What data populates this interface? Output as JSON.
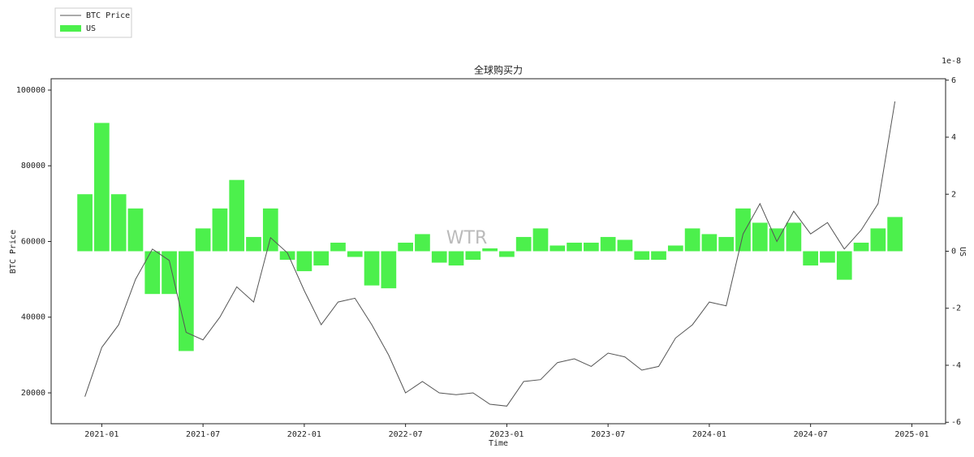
{
  "chart_data": {
    "type": "line_bar_dual",
    "title": "全球购买力",
    "xlabel": "Time",
    "ylabel": "BTC Price",
    "y2label": "US",
    "y2_offset_label": "1e-8",
    "watermark": "WTR",
    "x": [
      "2020-12",
      "2021-01",
      "2021-02",
      "2021-03",
      "2021-04",
      "2021-05",
      "2021-06",
      "2021-07",
      "2021-08",
      "2021-09",
      "2021-10",
      "2021-11",
      "2021-12",
      "2022-01",
      "2022-02",
      "2022-03",
      "2022-04",
      "2022-05",
      "2022-06",
      "2022-07",
      "2022-08",
      "2022-09",
      "2022-10",
      "2022-11",
      "2022-12",
      "2023-01",
      "2023-02",
      "2023-03",
      "2023-04",
      "2023-05",
      "2023-06",
      "2023-07",
      "2023-08",
      "2023-09",
      "2023-10",
      "2023-11",
      "2023-12",
      "2024-01",
      "2024-02",
      "2024-03",
      "2024-04",
      "2024-05",
      "2024-06",
      "2024-07",
      "2024-08",
      "2024-09",
      "2024-10",
      "2024-11",
      "2024-12"
    ],
    "series": [
      {
        "name": "BTC Price",
        "kind": "line",
        "color": "#555555",
        "axis": "y",
        "values": [
          19000,
          32000,
          38000,
          50000,
          58000,
          55000,
          36000,
          34000,
          40000,
          48000,
          44000,
          61000,
          57000,
          47000,
          38000,
          44000,
          45000,
          38000,
          30000,
          20000,
          23000,
          20000,
          19500,
          20000,
          17000,
          16500,
          23000,
          23500,
          28000,
          29000,
          27000,
          30500,
          29500,
          26000,
          27000,
          34500,
          38000,
          44000,
          43000,
          62000,
          70000,
          60000,
          68000,
          62000,
          65000,
          58000,
          63000,
          70000,
          97000
        ]
      },
      {
        "name": "US",
        "kind": "bar",
        "color": "#4cf04c",
        "axis": "y2",
        "values": [
          2.0,
          4.5,
          2.0,
          1.5,
          -1.5,
          -1.5,
          -3.5,
          0.8,
          1.5,
          2.5,
          0.5,
          1.5,
          -0.3,
          -0.7,
          -0.5,
          0.3,
          -0.2,
          -1.2,
          -1.3,
          0.3,
          0.6,
          -0.4,
          -0.5,
          -0.3,
          0.1,
          -0.2,
          0.5,
          0.8,
          0.2,
          0.3,
          0.3,
          0.5,
          0.4,
          -0.3,
          -0.3,
          0.2,
          0.8,
          0.6,
          0.5,
          1.5,
          1.0,
          0.8,
          1.0,
          -0.5,
          -0.4,
          -1.0,
          0.3,
          0.8,
          1.2
        ]
      }
    ],
    "xlim": [
      "2020-10",
      "2025-03"
    ],
    "xticks": [
      "2021-01",
      "2021-07",
      "2022-01",
      "2022-07",
      "2023-01",
      "2023-07",
      "2024-01",
      "2024-07",
      "2025-01"
    ],
    "ylim": [
      11850,
      103000
    ],
    "yticks": [
      20000,
      40000,
      60000,
      80000,
      100000
    ],
    "y2lim": [
      -6.05,
      6.05
    ],
    "y2ticks": [
      -6,
      -4,
      -2,
      0,
      2,
      4,
      6
    ],
    "legend": "top-left"
  }
}
